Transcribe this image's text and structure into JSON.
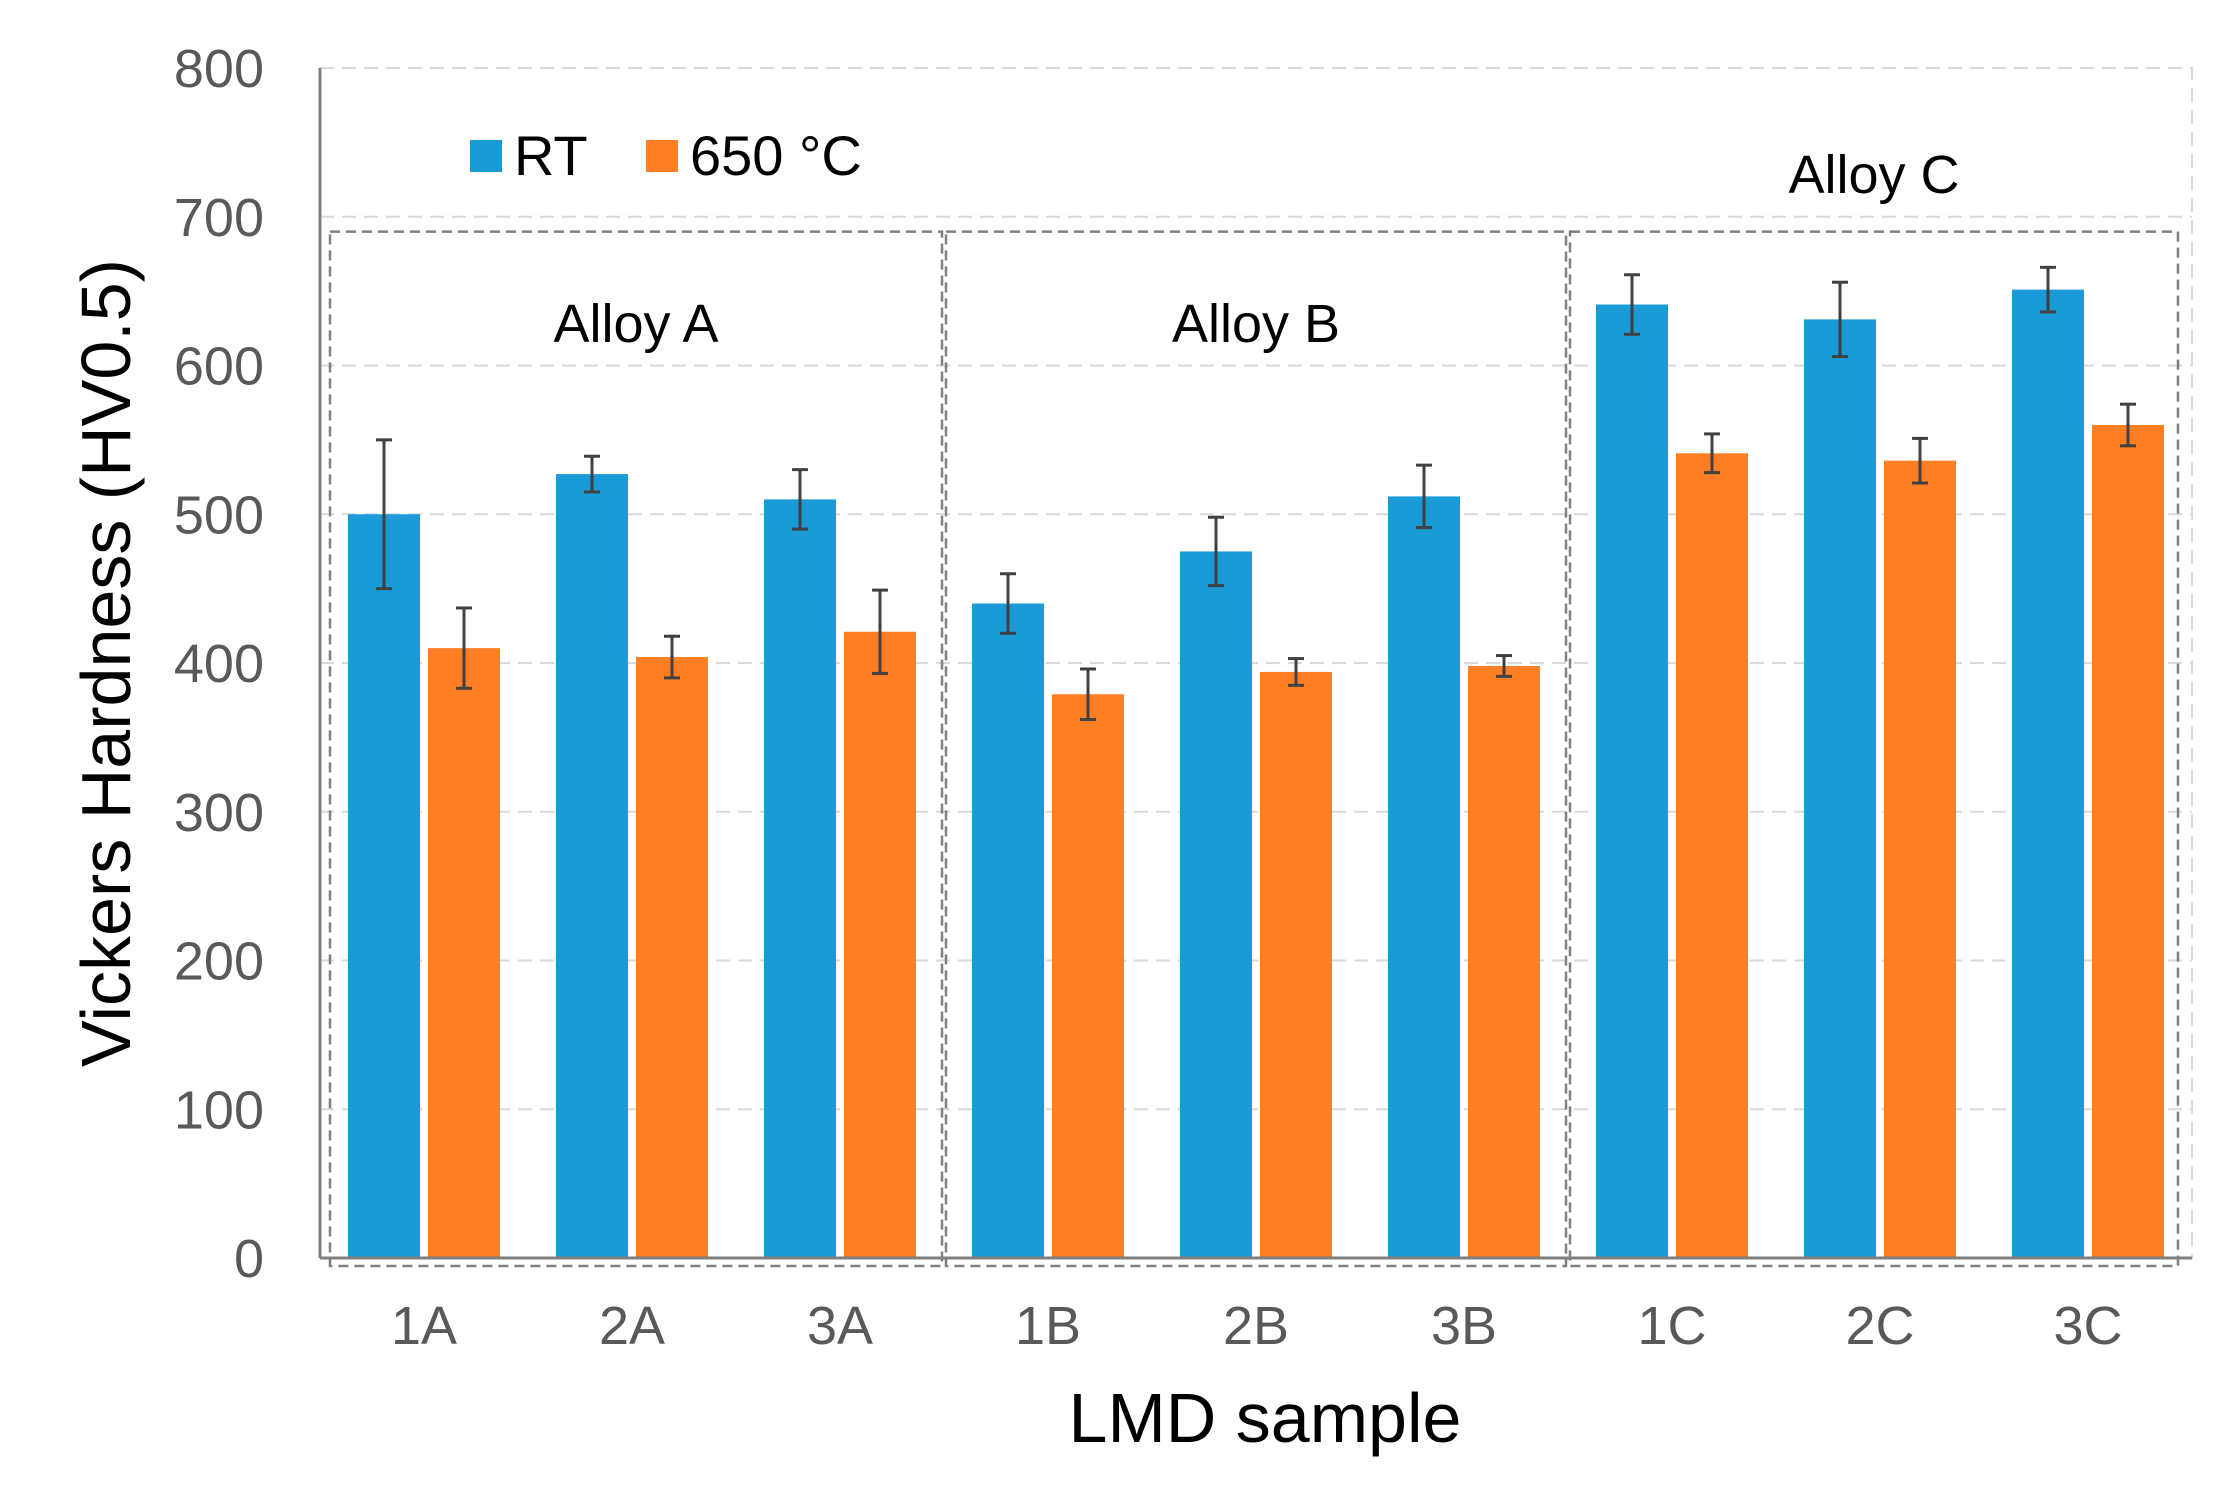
{
  "chart_data": {
    "type": "bar",
    "xlabel": "LMD sample",
    "ylabel": "Vickers Hardness (HV0.5)",
    "ylim": [
      0,
      800
    ],
    "yticks": [
      0,
      100,
      200,
      300,
      400,
      500,
      600,
      700,
      800
    ],
    "ytick_labels": [
      "0",
      "100",
      "200",
      "300",
      "400",
      "500",
      "600",
      "700",
      "800"
    ],
    "categories": [
      "1A",
      "2A",
      "3A",
      "1B",
      "2B",
      "3B",
      "1C",
      "2C",
      "3C"
    ],
    "groups": [
      {
        "label": "Alloy A",
        "categories": [
          "1A",
          "2A",
          "3A"
        ]
      },
      {
        "label": "Alloy B",
        "categories": [
          "1B",
          "2B",
          "3B"
        ]
      },
      {
        "label": "Alloy C",
        "categories": [
          "1C",
          "2C",
          "3C"
        ]
      }
    ],
    "series": [
      {
        "name": "RT",
        "color": "#1a9ad6",
        "values": [
          500,
          527,
          510,
          440,
          475,
          512,
          641,
          631,
          651
        ],
        "errors": [
          50,
          12,
          20,
          20,
          23,
          21,
          20,
          25,
          15
        ]
      },
      {
        "name": "650 °C",
        "color": "#ff7f24",
        "values": [
          410,
          404,
          421,
          379,
          394,
          398,
          541,
          536,
          560
        ],
        "errors": [
          27,
          14,
          28,
          17,
          9,
          7,
          13,
          15,
          14
        ]
      }
    ],
    "legend_position": "top-left",
    "grid": true
  }
}
